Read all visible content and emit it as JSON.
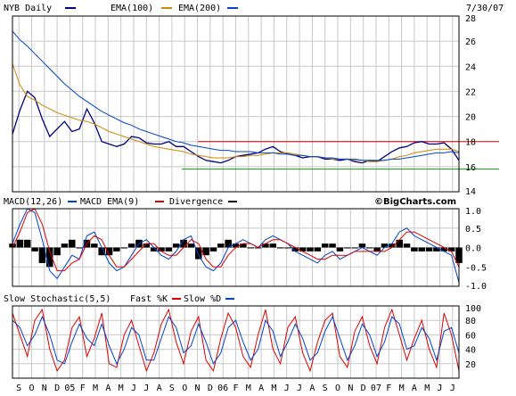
{
  "chart_data": [
    {
      "type": "line",
      "panel": "price",
      "legend": [
        "NYB Daily",
        "EMA(100)",
        "EMA(200)"
      ],
      "date": "7/30/07",
      "ylim": [
        14,
        28
      ],
      "yticks": [
        "28",
        "26",
        "24",
        "22",
        "20",
        "18",
        "16",
        "14"
      ],
      "colors": {
        "price": "#000080",
        "ema100": "#cc8800",
        "ema200": "#0044cc",
        "resistance": "#dd0000",
        "support": "#119911"
      },
      "resistance_level": 18.0,
      "support_level": 15.8,
      "series": [
        {
          "name": "NYB Daily",
          "key": "price",
          "values": [
            18.6,
            20.5,
            22.0,
            21.5,
            19.8,
            18.4,
            19.0,
            19.6,
            18.8,
            19.0,
            20.6,
            19.5,
            18.0,
            17.8,
            17.6,
            17.8,
            18.4,
            18.3,
            17.9,
            17.8,
            17.8,
            18.0,
            17.6,
            17.6,
            17.2,
            16.8,
            16.5,
            16.4,
            16.3,
            16.5,
            16.8,
            16.9,
            17.0,
            17.1,
            17.4,
            17.6,
            17.2,
            17.0,
            16.9,
            16.7,
            16.8,
            16.8,
            16.6,
            16.6,
            16.5,
            16.6,
            16.4,
            16.3,
            16.5,
            16.4,
            16.8,
            17.2,
            17.5,
            17.6,
            17.9,
            18.0,
            17.8,
            17.8,
            17.9,
            17.4,
            16.5
          ]
        },
        {
          "name": "EMA(100)",
          "key": "ema100",
          "values": [
            24.2,
            22.5,
            21.6,
            21.3,
            20.9,
            20.6,
            20.3,
            20.1,
            19.9,
            19.7,
            19.6,
            19.4,
            19.1,
            18.8,
            18.6,
            18.4,
            18.2,
            18.0,
            17.8,
            17.6,
            17.5,
            17.4,
            17.3,
            17.2,
            17.0,
            16.9,
            16.8,
            16.7,
            16.7,
            16.7,
            16.8,
            16.8,
            16.9,
            16.9,
            17.0,
            17.1,
            17.1,
            17.1,
            17.0,
            16.9,
            16.8,
            16.8,
            16.7,
            16.6,
            16.6,
            16.6,
            16.5,
            16.5,
            16.4,
            16.4,
            16.5,
            16.6,
            16.8,
            16.9,
            17.1,
            17.2,
            17.3,
            17.4,
            17.4,
            17.4,
            17.2
          ]
        },
        {
          "name": "EMA(200)",
          "key": "ema200",
          "values": [
            26.8,
            26.1,
            25.6,
            25.0,
            24.4,
            23.8,
            23.2,
            22.6,
            22.1,
            21.6,
            21.2,
            20.8,
            20.4,
            20.1,
            19.8,
            19.5,
            19.3,
            19.0,
            18.8,
            18.6,
            18.4,
            18.2,
            18.0,
            17.9,
            17.7,
            17.6,
            17.5,
            17.4,
            17.3,
            17.3,
            17.2,
            17.2,
            17.2,
            17.1,
            17.1,
            17.1,
            17.0,
            17.0,
            16.9,
            16.9,
            16.8,
            16.8,
            16.7,
            16.7,
            16.6,
            16.6,
            16.6,
            16.5,
            16.5,
            16.5,
            16.5,
            16.6,
            16.6,
            16.7,
            16.8,
            16.9,
            17.0,
            17.1,
            17.1,
            17.2,
            17.1
          ]
        }
      ]
    },
    {
      "type": "line",
      "panel": "macd",
      "legend": [
        "MACD(12,26)",
        "MACD EMA(9)",
        "Divergence"
      ],
      "credit": "©BigCharts.com",
      "ylim": [
        -1.0,
        1.0
      ],
      "yticks": [
        "1.0",
        "0.5",
        "0.0",
        "-0.5",
        "-1.0"
      ],
      "colors": {
        "macd": "#0044cc",
        "signal": "#dd0000",
        "hist": "#000000"
      },
      "series": [
        {
          "name": "MACD(12,26)",
          "key": "macd",
          "values": [
            0.1,
            0.6,
            1.1,
            0.9,
            0.2,
            -0.6,
            -0.8,
            -0.5,
            -0.2,
            -0.3,
            0.3,
            0.4,
            0.0,
            -0.4,
            -0.6,
            -0.5,
            -0.2,
            0.1,
            0.2,
            0.0,
            -0.2,
            -0.3,
            -0.1,
            0.2,
            0.3,
            -0.2,
            -0.5,
            -0.6,
            -0.4,
            0.0,
            0.1,
            0.2,
            0.1,
            0.0,
            0.2,
            0.3,
            0.2,
            0.1,
            -0.1,
            -0.2,
            -0.3,
            -0.4,
            -0.2,
            -0.1,
            -0.3,
            -0.2,
            -0.1,
            0.0,
            -0.1,
            -0.2,
            0.0,
            0.1,
            0.4,
            0.5,
            0.3,
            0.2,
            0.1,
            0.0,
            -0.1,
            -0.2,
            -0.9
          ]
        },
        {
          "name": "MACD EMA(9)",
          "key": "signal",
          "values": [
            0.0,
            0.4,
            0.9,
            1.0,
            0.6,
            -0.1,
            -0.6,
            -0.6,
            -0.4,
            -0.3,
            0.1,
            0.3,
            0.2,
            -0.2,
            -0.5,
            -0.5,
            -0.3,
            -0.1,
            0.1,
            0.1,
            -0.1,
            -0.2,
            -0.2,
            0.0,
            0.2,
            0.1,
            -0.3,
            -0.5,
            -0.5,
            -0.2,
            0.0,
            0.1,
            0.1,
            0.0,
            0.1,
            0.2,
            0.2,
            0.1,
            0.0,
            -0.1,
            -0.2,
            -0.3,
            -0.3,
            -0.2,
            -0.2,
            -0.2,
            -0.1,
            -0.1,
            -0.1,
            -0.1,
            -0.1,
            0.0,
            0.2,
            0.4,
            0.4,
            0.3,
            0.2,
            0.1,
            0.0,
            -0.1,
            -0.5
          ]
        }
      ]
    },
    {
      "type": "line",
      "panel": "stochastic",
      "legend": [
        "Slow Stochastic(5,5)",
        "Fast %K",
        "Slow %D"
      ],
      "ylim": [
        0,
        100
      ],
      "yticks": [
        "100",
        "80",
        "60",
        "40",
        "20"
      ],
      "colors": {
        "k": "#dd0000",
        "d": "#0044cc"
      },
      "series": [
        {
          "name": "Fast %K",
          "key": "k",
          "values": [
            90,
            60,
            30,
            80,
            95,
            40,
            10,
            25,
            70,
            85,
            30,
            55,
            90,
            20,
            15,
            60,
            80,
            45,
            10,
            35,
            75,
            95,
            50,
            20,
            65,
            85,
            25,
            10,
            55,
            90,
            70,
            30,
            15,
            60,
            95,
            40,
            20,
            70,
            85,
            35,
            10,
            50,
            80,
            90,
            30,
            15,
            65,
            85,
            45,
            20,
            70,
            95,
            60,
            25,
            55,
            80,
            40,
            15,
            90,
            60,
            10
          ]
        },
        {
          "name": "Slow %D",
          "key": "d",
          "values": [
            80,
            70,
            45,
            60,
            85,
            60,
            25,
            20,
            50,
            75,
            55,
            45,
            75,
            45,
            20,
            40,
            70,
            60,
            25,
            25,
            55,
            85,
            70,
            35,
            45,
            75,
            50,
            20,
            35,
            70,
            80,
            50,
            25,
            40,
            80,
            65,
            30,
            50,
            75,
            55,
            25,
            35,
            65,
            85,
            55,
            25,
            45,
            75,
            60,
            30,
            50,
            85,
            75,
            40,
            45,
            70,
            55,
            25,
            65,
            70,
            35
          ]
        }
      ]
    }
  ],
  "xaxis": {
    "labels": [
      "S",
      "O",
      "N",
      "D",
      "05",
      "F",
      "M",
      "A",
      "M",
      "J",
      "J",
      "A",
      "S",
      "O",
      "N",
      "D",
      "06",
      "F",
      "M",
      "A",
      "M",
      "J",
      "J",
      "A",
      "S",
      "O",
      "N",
      "D",
      "07",
      "F",
      "M",
      "A",
      "M",
      "J",
      "J"
    ]
  }
}
